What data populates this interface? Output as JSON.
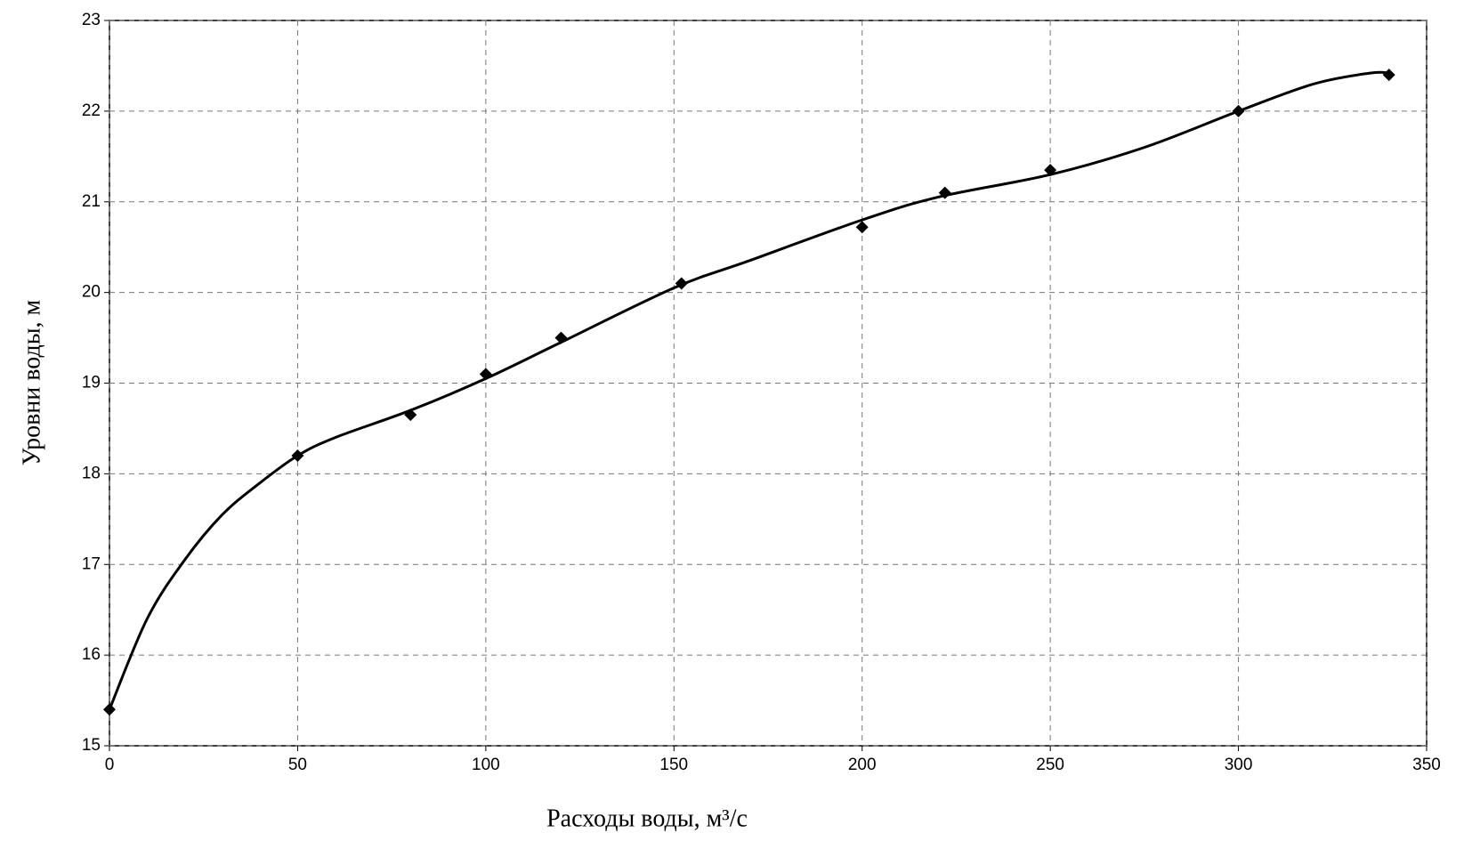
{
  "chart_data": {
    "type": "scatter",
    "xlabel": "Расходы воды, м³/с",
    "ylabel": "Уровни воды, м",
    "xlim": [
      0,
      350
    ],
    "xticks": [
      0,
      50,
      100,
      150,
      200,
      250,
      300,
      350
    ],
    "ylim": [
      15,
      23
    ],
    "yticks": [
      15,
      16,
      17,
      18,
      19,
      20,
      21,
      22,
      23
    ],
    "grid": true,
    "series": [
      {
        "color": "#000000",
        "marker": "diamond",
        "x": [
          0,
          50,
          80,
          100,
          120,
          152,
          200,
          222,
          250,
          300,
          340
        ],
        "values": [
          15.4,
          18.2,
          18.65,
          19.1,
          19.5,
          20.1,
          20.72,
          21.1,
          21.35,
          22.0,
          22.4
        ]
      },
      {
        "color": "#000000",
        "marker": "line",
        "x": [
          0,
          10,
          20,
          30,
          40,
          50,
          60,
          80,
          100,
          120,
          150,
          170,
          200,
          220,
          250,
          275,
          300,
          320,
          335,
          340
        ],
        "values": [
          15.4,
          16.4,
          17.05,
          17.55,
          17.9,
          18.2,
          18.4,
          18.7,
          19.05,
          19.45,
          20.05,
          20.35,
          20.8,
          21.05,
          21.3,
          21.6,
          22.0,
          22.3,
          22.42,
          22.42
        ]
      }
    ]
  }
}
